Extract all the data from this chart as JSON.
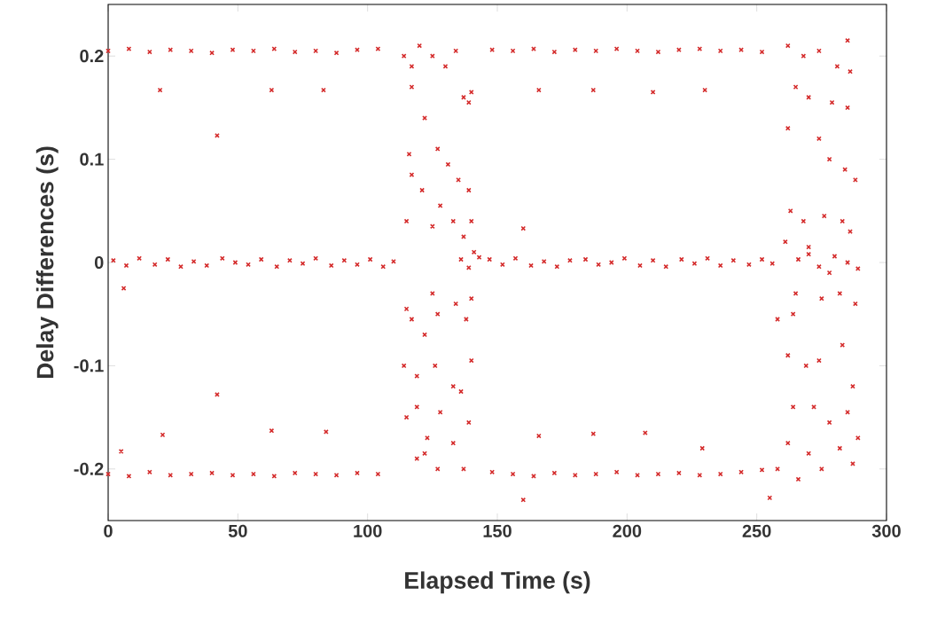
{
  "chart_data": {
    "type": "scatter",
    "xlabel": "Elapsed Time (s)",
    "ylabel": "Delay Differences (s)",
    "xlim": [
      0,
      300
    ],
    "ylim": [
      -0.25,
      0.25
    ],
    "xticks": [
      0,
      50,
      100,
      150,
      200,
      250,
      300
    ],
    "yticks": [
      -0.2,
      -0.1,
      0,
      0.1,
      0.2
    ],
    "marker": "cross",
    "grid": false,
    "series": [
      {
        "color": "#d42a2a",
        "x": [
          0,
          8,
          16,
          24,
          32,
          40,
          48,
          56,
          64,
          72,
          80,
          88,
          96,
          104,
          148,
          156,
          164,
          172,
          180,
          188,
          196,
          204,
          212,
          220,
          228,
          236,
          244,
          252,
          0,
          8,
          16,
          24,
          32,
          40,
          48,
          56,
          64,
          72,
          80,
          88,
          96,
          104,
          148,
          156,
          164,
          172,
          180,
          188,
          196,
          204,
          212,
          220,
          228,
          236,
          244,
          252,
          2,
          7,
          12,
          18,
          23,
          28,
          33,
          38,
          44,
          49,
          54,
          59,
          65,
          70,
          75,
          80,
          86,
          91,
          96,
          101,
          106,
          110,
          147,
          152,
          157,
          163,
          168,
          173,
          178,
          184,
          189,
          194,
          199,
          205,
          210,
          215,
          221,
          226,
          231,
          236,
          241,
          247,
          252,
          256,
          20,
          63,
          83,
          42,
          42,
          21,
          63,
          84,
          5,
          6,
          166,
          187,
          210,
          230,
          166,
          187,
          207,
          229,
          160,
          255,
          160,
          114,
          117,
          120,
          125,
          130,
          134,
          117,
          137,
          140,
          139,
          122,
          127,
          116,
          117,
          131,
          135,
          139,
          121,
          128,
          115,
          125,
          133,
          140,
          137,
          115,
          117,
          125,
          127,
          134,
          140,
          138,
          122,
          114,
          119,
          126,
          133,
          136,
          140,
          119,
          128,
          139,
          115,
          123,
          133,
          119,
          127,
          122,
          137,
          143,
          141,
          139,
          136,
          262,
          268,
          274,
          281,
          286,
          285,
          265,
          270,
          279,
          285,
          262,
          274,
          278,
          284,
          288,
          263,
          268,
          276,
          283,
          286,
          261,
          270,
          265,
          264,
          275,
          282,
          288,
          258,
          262,
          269,
          274,
          283,
          287,
          264,
          272,
          285,
          278,
          262,
          270,
          282,
          289,
          266,
          258,
          275,
          287,
          266,
          274,
          280,
          285,
          289,
          270,
          278
        ],
        "values": [
          0.205,
          0.207,
          0.204,
          0.206,
          0.205,
          0.203,
          0.206,
          0.205,
          0.207,
          0.204,
          0.205,
          0.203,
          0.206,
          0.207,
          0.206,
          0.205,
          0.207,
          0.204,
          0.206,
          0.205,
          0.207,
          0.205,
          0.204,
          0.206,
          0.207,
          0.205,
          0.206,
          0.204,
          -0.205,
          -0.207,
          -0.203,
          -0.206,
          -0.205,
          -0.204,
          -0.206,
          -0.205,
          -0.207,
          -0.204,
          -0.205,
          -0.206,
          -0.204,
          -0.205,
          -0.203,
          -0.205,
          -0.207,
          -0.204,
          -0.206,
          -0.205,
          -0.203,
          -0.206,
          -0.205,
          -0.204,
          -0.206,
          -0.205,
          -0.203,
          -0.201,
          0.002,
          -0.003,
          0.004,
          -0.002,
          0.003,
          -0.004,
          0.001,
          -0.003,
          0.004,
          0.0,
          -0.002,
          0.003,
          -0.004,
          0.002,
          -0.001,
          0.004,
          -0.003,
          0.002,
          -0.002,
          0.003,
          -0.004,
          0.001,
          0.003,
          -0.002,
          0.004,
          -0.003,
          0.001,
          -0.004,
          0.002,
          0.003,
          -0.002,
          0.0,
          0.004,
          -0.003,
          0.002,
          -0.004,
          0.003,
          -0.001,
          0.004,
          -0.003,
          0.002,
          -0.002,
          0.003,
          -0.001,
          0.167,
          0.167,
          0.167,
          0.123,
          -0.128,
          -0.167,
          -0.163,
          -0.164,
          -0.183,
          -0.025,
          0.167,
          0.167,
          0.165,
          0.167,
          -0.168,
          -0.166,
          -0.165,
          -0.18,
          -0.23,
          -0.228,
          0.033,
          0.2,
          0.19,
          0.21,
          0.2,
          0.19,
          0.205,
          0.17,
          0.16,
          0.165,
          0.155,
          0.14,
          0.11,
          0.105,
          0.085,
          0.095,
          0.08,
          0.07,
          0.07,
          0.055,
          0.04,
          0.035,
          0.04,
          0.04,
          0.025,
          -0.045,
          -0.055,
          -0.03,
          -0.05,
          -0.04,
          -0.035,
          -0.055,
          -0.07,
          -0.1,
          -0.11,
          -0.1,
          -0.12,
          -0.125,
          -0.095,
          -0.14,
          -0.145,
          -0.155,
          -0.15,
          -0.17,
          -0.175,
          -0.19,
          -0.2,
          -0.185,
          -0.2,
          0.005,
          0.01,
          -0.005,
          0.003,
          0.21,
          0.2,
          0.205,
          0.19,
          0.185,
          0.215,
          0.17,
          0.16,
          0.155,
          0.15,
          0.13,
          0.12,
          0.1,
          0.09,
          0.08,
          0.05,
          0.04,
          0.045,
          0.04,
          0.03,
          0.02,
          0.015,
          -0.03,
          -0.05,
          -0.035,
          -0.03,
          -0.04,
          -0.055,
          -0.09,
          -0.1,
          -0.095,
          -0.08,
          -0.12,
          -0.14,
          -0.14,
          -0.145,
          -0.155,
          -0.175,
          -0.185,
          -0.18,
          -0.17,
          -0.21,
          -0.2,
          -0.2,
          -0.195,
          0.003,
          -0.004,
          0.006,
          0.0,
          -0.006,
          0.008,
          -0.01
        ]
      }
    ]
  }
}
